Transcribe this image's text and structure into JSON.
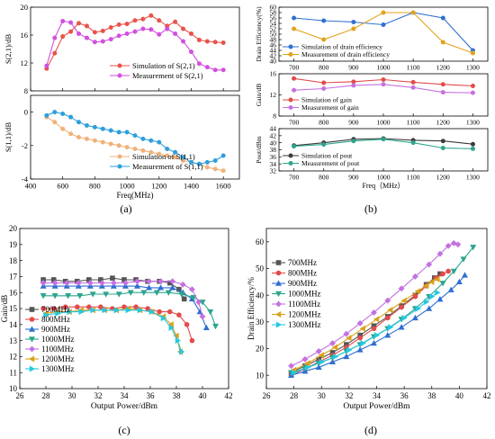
{
  "figure": {
    "captions": [
      "(a)",
      "(b)",
      "(c)",
      "(d)"
    ]
  },
  "chart_data": [
    {
      "id": "a1",
      "type": "line",
      "ylabel": "S(2,1)/dB",
      "xlabel": "",
      "xlim": [
        400,
        1700
      ],
      "ylim": [
        8,
        20
      ],
      "xticks": [
        400,
        600,
        800,
        1000,
        1200,
        1400,
        1600
      ],
      "yticks": [
        8,
        12,
        16,
        20
      ],
      "legend_position": "bottom-right",
      "series": [
        {
          "name": "Simulation of S(2,1)",
          "color": "#e8534a",
          "marker": "circle",
          "x": [
            500,
            550,
            600,
            650,
            700,
            750,
            800,
            850,
            900,
            950,
            1000,
            1050,
            1100,
            1150,
            1200,
            1250,
            1300,
            1350,
            1400,
            1450,
            1500,
            1550,
            1600
          ],
          "y": [
            11.2,
            13.4,
            15.8,
            16.5,
            17.7,
            17.3,
            16.4,
            16.6,
            17.1,
            17.5,
            17.6,
            18.1,
            18.3,
            18.8,
            18.1,
            17.3,
            17.9,
            16.9,
            16.2,
            15.3,
            15.1,
            15.0,
            14.9
          ]
        },
        {
          "name": "Measurement of S(2,1)",
          "color": "#d24fe0",
          "marker": "circle",
          "x": [
            500,
            550,
            600,
            650,
            700,
            750,
            800,
            850,
            900,
            950,
            1000,
            1050,
            1100,
            1150,
            1200,
            1250,
            1300,
            1350,
            1400,
            1450,
            1500,
            1550,
            1600
          ],
          "y": [
            11.6,
            15.6,
            18.0,
            17.8,
            16.2,
            15.6,
            15.0,
            15.1,
            15.4,
            15.9,
            16.2,
            16.5,
            16.9,
            16.8,
            16.1,
            16.9,
            16.2,
            15.1,
            13.6,
            11.9,
            11.4,
            11.0,
            11.0
          ]
        }
      ]
    },
    {
      "id": "a2",
      "type": "line",
      "ylabel": "S(1,1)/dB",
      "xlabel": "Freq(MHz)",
      "xlim": [
        400,
        1700
      ],
      "ylim": [
        -4,
        1
      ],
      "xticks": [
        400,
        600,
        800,
        1000,
        1200,
        1400,
        1600
      ],
      "yticks": [
        0,
        -2,
        -4
      ],
      "legend_position": "bottom-right",
      "series": [
        {
          "name": "Simulation of S(1,1)",
          "color": "#f0b27a",
          "marker": "circle",
          "x": [
            500,
            550,
            600,
            650,
            700,
            750,
            800,
            850,
            900,
            950,
            1000,
            1050,
            1100,
            1150,
            1200,
            1250,
            1300,
            1350,
            1400,
            1450,
            1500,
            1550,
            1600
          ],
          "y": [
            -0.3,
            -0.6,
            -1.0,
            -1.3,
            -1.5,
            -1.6,
            -1.7,
            -1.8,
            -1.9,
            -2.0,
            -2.1,
            -2.2,
            -2.3,
            -2.4,
            -2.5,
            -2.6,
            -2.7,
            -2.9,
            -3.0,
            -3.1,
            -3.3,
            -3.4,
            -3.5
          ]
        },
        {
          "name": "Measurement of S(1,1)",
          "color": "#2e9fdb",
          "marker": "circle",
          "x": [
            500,
            550,
            600,
            650,
            700,
            750,
            800,
            850,
            900,
            950,
            1000,
            1050,
            1100,
            1150,
            1200,
            1250,
            1300,
            1350,
            1400,
            1450,
            1500,
            1550,
            1600
          ],
          "y": [
            -0.2,
            0.0,
            -0.1,
            -0.3,
            -0.6,
            -0.8,
            -0.9,
            -1.0,
            -1.1,
            -1.2,
            -1.2,
            -1.4,
            -1.6,
            -1.7,
            -1.8,
            -2.2,
            -2.4,
            -2.7,
            -3.0,
            -3.1,
            -3.0,
            -2.9,
            -2.6
          ]
        }
      ]
    },
    {
      "id": "b1",
      "type": "line",
      "ylabel": "Drain Efficiency(%)",
      "xlabel": "",
      "xlim": [
        650,
        1350
      ],
      "ylim": [
        40,
        60
      ],
      "xticks": [
        700,
        800,
        900,
        1000,
        1100,
        1200,
        1300
      ],
      "yticks": [
        40,
        42,
        44,
        46,
        48,
        50,
        52,
        54,
        56,
        58,
        60
      ],
      "legend_position": "bottom-left",
      "series": [
        {
          "name": "Simulation of drain efficiency",
          "color": "#2f6fd1",
          "marker": "circle",
          "x": [
            700,
            800,
            900,
            1000,
            1100,
            1200,
            1300
          ],
          "y": [
            56.0,
            55.0,
            54.5,
            53.5,
            58.0,
            56.0,
            44.0
          ]
        },
        {
          "name": "Measurement of drain efficiency",
          "color": "#e3a21a",
          "marker": "circle",
          "x": [
            700,
            800,
            900,
            1000,
            1100,
            1200,
            1300
          ],
          "y": [
            52.0,
            48.0,
            52.0,
            58.0,
            58.0,
            47.0,
            43.0
          ]
        }
      ]
    },
    {
      "id": "b2",
      "type": "line",
      "ylabel": "Gain/dB",
      "xlabel": "",
      "xlim": [
        650,
        1350
      ],
      "ylim": [
        8,
        16
      ],
      "xticks": [
        700,
        800,
        900,
        1000,
        1100,
        1200,
        1300
      ],
      "yticks": [
        8,
        12,
        16
      ],
      "legend_position": "bottom-left",
      "series": [
        {
          "name": "Simulation of gain",
          "color": "#e34a4a",
          "marker": "circle",
          "x": [
            700,
            800,
            900,
            1000,
            1100,
            1200,
            1300
          ],
          "y": [
            15.1,
            14.3,
            14.5,
            14.9,
            14.4,
            14.0,
            13.7
          ]
        },
        {
          "name": "Measurement of gain",
          "color": "#c471e0",
          "marker": "circle",
          "x": [
            700,
            800,
            900,
            1000,
            1100,
            1200,
            1300
          ],
          "y": [
            12.9,
            13.2,
            13.8,
            14.0,
            13.4,
            12.5,
            12.4
          ]
        }
      ]
    },
    {
      "id": "b3",
      "type": "line",
      "ylabel": "Pout/dBm",
      "xlabel": "Freq（MHz）",
      "xlim": [
        650,
        1350
      ],
      "ylim": [
        32,
        44
      ],
      "xticks": [
        700,
        800,
        900,
        1000,
        1100,
        1200,
        1300
      ],
      "yticks": [
        32,
        34,
        36,
        38,
        40,
        42,
        44
      ],
      "legend_position": "bottom-left",
      "series": [
        {
          "name": "Simulation of pout",
          "color": "#3a3a3a",
          "marker": "circle",
          "x": [
            700,
            800,
            900,
            1000,
            1100,
            1200,
            1300
          ],
          "y": [
            39.2,
            40.0,
            41.0,
            41.2,
            40.7,
            40.5,
            39.6
          ]
        },
        {
          "name": "Measurement of pout",
          "color": "#2ca58d",
          "marker": "circle",
          "x": [
            700,
            800,
            900,
            1000,
            1100,
            1200,
            1300
          ],
          "y": [
            39.0,
            39.5,
            40.5,
            41.0,
            40.0,
            38.5,
            38.3
          ]
        }
      ]
    },
    {
      "id": "c",
      "type": "line",
      "ylabel": "Gain/dB",
      "xlabel": "Output Power/dBm",
      "xlim": [
        26,
        42
      ],
      "ylim": [
        10,
        20
      ],
      "xticks": [
        26,
        28,
        30,
        32,
        34,
        36,
        38,
        40,
        42
      ],
      "yticks": [
        10,
        11,
        12,
        13,
        14,
        15,
        16,
        17,
        18,
        19,
        20
      ],
      "legend_position": "bottom-left",
      "series": [
        {
          "name": "700MHz",
          "color": "#555555",
          "marker": "square",
          "x": [
            27.8,
            28.6,
            29.5,
            30.4,
            31.3,
            32.2,
            33.1,
            34.0,
            34.9,
            35.8,
            36.7,
            37.5,
            38.2,
            38.6
          ],
          "y": [
            16.8,
            16.8,
            16.7,
            16.7,
            16.8,
            16.8,
            16.9,
            16.8,
            16.8,
            16.7,
            16.7,
            16.6,
            16.2,
            15.6
          ]
        },
        {
          "name": "800MHz",
          "color": "#e34a4a",
          "marker": "circle",
          "x": [
            27.8,
            28.6,
            29.5,
            30.4,
            31.3,
            32.2,
            33.1,
            34.0,
            34.9,
            35.8,
            36.7,
            37.5,
            38.2,
            38.8,
            39.2
          ],
          "y": [
            15.0,
            15.0,
            15.1,
            15.1,
            15.1,
            15.1,
            15.0,
            15.1,
            15.1,
            15.0,
            14.8,
            14.8,
            14.6,
            14.0,
            13.0
          ]
        },
        {
          "name": "900MHz",
          "color": "#2f6fd1",
          "marker": "triangle-up",
          "x": [
            27.8,
            28.7,
            29.6,
            30.5,
            31.4,
            32.3,
            33.2,
            34.1,
            35.0,
            35.9,
            36.8,
            37.7,
            38.5,
            39.2,
            39.8,
            40.3
          ],
          "y": [
            16.4,
            16.4,
            16.4,
            16.4,
            16.4,
            16.4,
            16.4,
            16.4,
            16.4,
            16.3,
            16.3,
            16.3,
            16.0,
            15.6,
            14.8,
            13.8
          ]
        },
        {
          "name": "1000MHz",
          "color": "#2ca58d",
          "marker": "triangle-down",
          "x": [
            27.8,
            28.7,
            29.7,
            30.6,
            31.6,
            32.6,
            33.6,
            34.5,
            35.5,
            36.5,
            37.4,
            38.4,
            39.3,
            40.0,
            40.6,
            41.0
          ],
          "y": [
            15.8,
            15.8,
            15.8,
            15.8,
            15.9,
            15.9,
            15.9,
            16.0,
            16.0,
            16.0,
            16.0,
            15.9,
            15.7,
            15.4,
            14.8,
            13.9
          ]
        },
        {
          "name": "1100MHz",
          "color": "#c471e0",
          "marker": "diamond",
          "x": [
            27.8,
            28.7,
            29.6,
            30.5,
            31.4,
            32.3,
            33.2,
            34.1,
            35.0,
            35.9,
            36.8,
            37.7,
            38.5,
            39.2,
            39.7,
            40.0
          ],
          "y": [
            16.6,
            16.6,
            16.6,
            16.6,
            16.6,
            16.6,
            16.6,
            16.6,
            16.7,
            16.7,
            16.7,
            16.7,
            16.5,
            16.2,
            15.4,
            14.5
          ]
        },
        {
          "name": "1200MHz",
          "color": "#d9a21a",
          "marker": "triangle-left",
          "x": [
            28.0,
            28.9,
            29.8,
            30.7,
            31.6,
            32.5,
            33.4,
            34.3,
            35.2,
            36.1,
            37.0,
            37.6,
            38.0,
            38.3
          ],
          "y": [
            14.7,
            14.8,
            14.8,
            14.9,
            14.9,
            14.9,
            14.9,
            15.0,
            14.9,
            14.8,
            14.5,
            14.0,
            13.3,
            12.3
          ]
        },
        {
          "name": "1300MHz",
          "color": "#25c8e0",
          "marker": "triangle-right",
          "x": [
            28.0,
            28.9,
            29.8,
            30.7,
            31.6,
            32.5,
            33.4,
            34.3,
            35.2,
            36.1,
            37.0,
            37.6,
            38.1,
            38.4
          ],
          "y": [
            14.6,
            14.7,
            14.8,
            14.8,
            14.9,
            14.9,
            14.9,
            14.9,
            14.9,
            14.8,
            14.4,
            13.8,
            13.0,
            12.3
          ]
        }
      ]
    },
    {
      "id": "d",
      "type": "line",
      "ylabel": "Drain Efficiency/%",
      "xlabel": "Output Power/dBm",
      "xlim": [
        26,
        42
      ],
      "ylim": [
        5,
        65
      ],
      "xticks": [
        26,
        28,
        30,
        32,
        34,
        36,
        38,
        40,
        42
      ],
      "yticks": [
        10,
        20,
        30,
        40,
        50,
        60
      ],
      "legend_position": "top-left",
      "series": [
        {
          "name": "700MHz",
          "color": "#555555",
          "marker": "square",
          "x": [
            27.8,
            28.8,
            29.8,
            30.8,
            31.8,
            32.8,
            33.8,
            34.8,
            35.8,
            36.8,
            37.6,
            38.2,
            38.6
          ],
          "y": [
            11.0,
            13.5,
            16.0,
            18.5,
            21.5,
            25.0,
            28.5,
            32.0,
            36.0,
            40.0,
            44.0,
            46.5,
            48.0
          ]
        },
        {
          "name": "800MHz",
          "color": "#e34a4a",
          "marker": "circle",
          "x": [
            27.8,
            28.8,
            29.8,
            30.8,
            31.8,
            32.8,
            33.8,
            34.8,
            35.8,
            36.8,
            37.6,
            38.3,
            38.8,
            39.2
          ],
          "y": [
            10.0,
            12.5,
            15.0,
            17.5,
            20.5,
            24.0,
            27.5,
            31.5,
            35.5,
            39.5,
            43.5,
            46.5,
            48.0,
            49.0
          ]
        },
        {
          "name": "900MHz",
          "color": "#2f6fd1",
          "marker": "triangle-up",
          "x": [
            27.8,
            28.8,
            29.8,
            30.8,
            31.8,
            32.8,
            33.8,
            34.8,
            35.8,
            36.8,
            37.8,
            38.6,
            39.4,
            40.0,
            40.4
          ],
          "y": [
            10.0,
            11.5,
            13.0,
            15.0,
            17.0,
            19.5,
            22.0,
            25.0,
            28.0,
            31.5,
            35.0,
            38.5,
            42.0,
            45.0,
            47.5
          ]
        },
        {
          "name": "1000MHz",
          "color": "#2ca58d",
          "marker": "triangle-down",
          "x": [
            27.8,
            28.8,
            29.8,
            30.8,
            31.8,
            32.8,
            33.8,
            34.8,
            35.8,
            36.8,
            37.8,
            38.8,
            39.6,
            40.3,
            41.0
          ],
          "y": [
            11.0,
            12.5,
            14.5,
            16.5,
            19.0,
            21.5,
            24.5,
            27.5,
            31.0,
            35.0,
            39.5,
            44.5,
            49.0,
            53.5,
            58.0
          ]
        },
        {
          "name": "1100MHz",
          "color": "#c471e0",
          "marker": "diamond",
          "x": [
            27.8,
            28.8,
            29.8,
            30.8,
            31.8,
            32.8,
            33.8,
            34.8,
            35.8,
            36.8,
            37.8,
            38.6,
            39.2,
            39.6,
            39.9
          ],
          "y": [
            13.5,
            16.0,
            19.0,
            22.0,
            25.5,
            29.5,
            33.5,
            38.0,
            42.5,
            47.0,
            51.5,
            55.5,
            58.5,
            59.5,
            59.0
          ]
        },
        {
          "name": "1200MHz",
          "color": "#d9a21a",
          "marker": "triangle-left",
          "x": [
            28.0,
            29.0,
            30.0,
            31.0,
            32.0,
            33.0,
            34.0,
            35.0,
            36.0,
            37.0,
            37.6,
            38.0,
            38.4
          ],
          "y": [
            12.0,
            14.5,
            17.5,
            20.5,
            24.0,
            27.5,
            31.0,
            34.5,
            38.0,
            41.5,
            43.5,
            45.0,
            46.0
          ]
        },
        {
          "name": "1300MHz",
          "color": "#25c8e0",
          "marker": "triangle-right",
          "x": [
            28.0,
            29.0,
            30.0,
            31.0,
            32.0,
            33.0,
            34.0,
            35.0,
            36.0,
            37.0,
            37.6,
            38.0,
            38.4
          ],
          "y": [
            11.0,
            13.0,
            15.0,
            17.0,
            19.5,
            22.0,
            25.0,
            28.0,
            31.5,
            35.0,
            37.5,
            39.5,
            41.0
          ]
        }
      ]
    }
  ]
}
